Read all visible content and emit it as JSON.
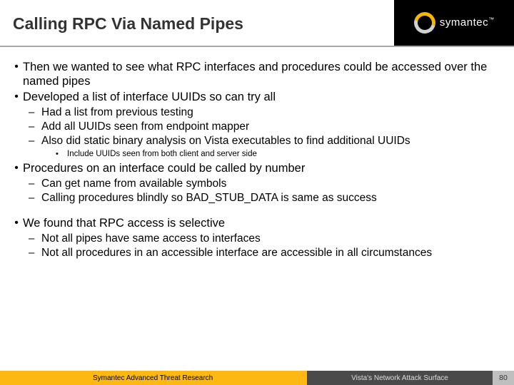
{
  "header": {
    "title": "Calling RPC Via Named Pipes",
    "brand": "symantec",
    "brand_color": "#fdb813",
    "header_bg": "#000000"
  },
  "bullets": {
    "b1_1": "Then we wanted to see what RPC interfaces and procedures could be accessed over the named pipes",
    "b1_2": "Developed a list of interface UUIDs so can try all",
    "b2_2_1": "Had a list from previous testing",
    "b2_2_2": "Add all UUIDs seen from endpoint mapper",
    "b2_2_3": "Also did static binary analysis on Vista executables to find additional UUIDs",
    "b3_2_3_1": "Include UUIDs seen from both client and server side",
    "b1_3": "Procedures on an interface could be called by number",
    "b2_3_1": "Can get name from available symbols",
    "b2_3_2": "Calling procedures blindly so BAD_STUB_DATA is same as success",
    "b1_4": "We found that RPC access is selective",
    "b2_4_1": "Not all pipes have same access to interfaces",
    "b2_4_2": "Not all procedures in an accessible interface are accessible in all circumstances"
  },
  "footer": {
    "left": "Symantec Advanced Threat Research",
    "right": "Vista's Network Attack Surface",
    "page": "80",
    "left_bg": "#fdb813",
    "right_bg": "#4a4a4a",
    "num_bg": "#bfbfbf"
  },
  "glyphs": {
    "lvl1": "•",
    "lvl2": "–",
    "lvl3": "•"
  }
}
